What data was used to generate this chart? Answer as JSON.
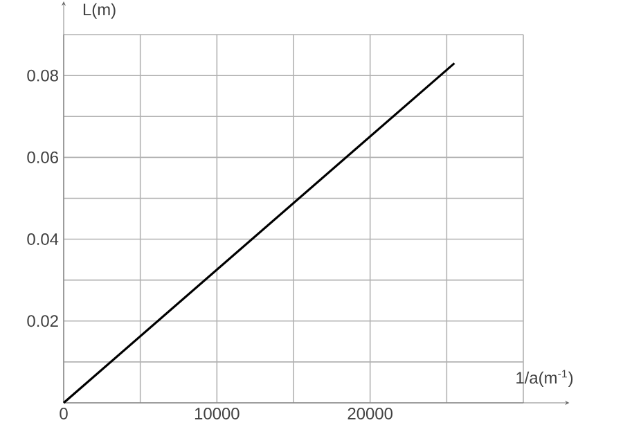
{
  "chart_data": {
    "type": "line",
    "xlabel": "1/a(m$^{-1}$)",
    "ylabel": "L(m)",
    "x": [
      0,
      25500
    ],
    "series": [
      {
        "color": "#000000",
        "values": [
          0,
          0.083
        ]
      }
    ],
    "xlim": [
      0,
      30000
    ],
    "ylim": [
      0,
      0.09
    ],
    "xticks": [
      0,
      {
        "value": 5000,
        "label": null
      },
      10000,
      {
        "value": 15000,
        "label": null
      },
      20000,
      {
        "value": 25000,
        "label": null
      },
      {
        "value": 30000,
        "label": null
      }
    ],
    "yticks": [
      {
        "value": 0,
        "label": null
      },
      {
        "value": 0.01,
        "label": null
      },
      0.02,
      {
        "value": 0.03,
        "label": null
      },
      0.04,
      {
        "value": 0.05,
        "label": null
      },
      0.06,
      {
        "value": 0.07,
        "label": null
      },
      0.08,
      {
        "value": 0.09,
        "label": null
      }
    ],
    "grid": true,
    "marker": "none",
    "line_style": "solid"
  }
}
